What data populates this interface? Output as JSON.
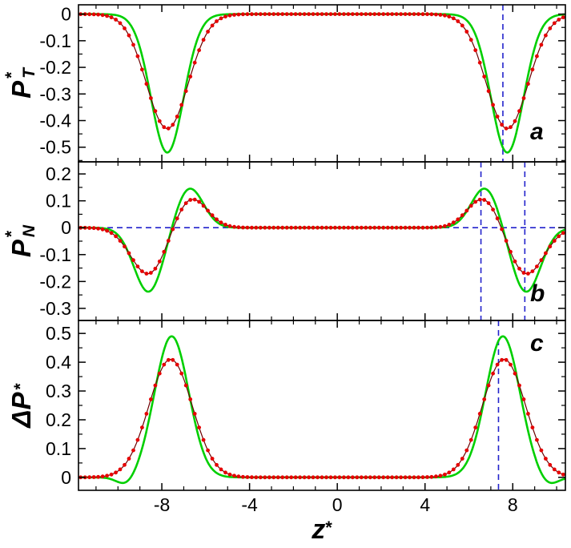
{
  "figure": {
    "background": "#ffffff",
    "frame_color": "#000000",
    "colors": {
      "green_line": "#00cf00",
      "red_points": "#e60000",
      "red_line": "#6b0000",
      "blue_guide": "#2222cc"
    },
    "xlabel": {
      "base": "z",
      "sup": "*"
    }
  },
  "chart_data": {
    "type": "line",
    "title": "",
    "x_axis": {
      "label": "z*",
      "range": [
        -11.8,
        10.4
      ],
      "major_ticks": [
        -8,
        -4,
        0,
        4,
        8
      ],
      "minor_step": 1
    },
    "panels": [
      {
        "id": "a",
        "letter": "a",
        "ylabel": {
          "base": "P",
          "sub": "T",
          "sup": "*",
          "plain": "P_T*"
        },
        "y_axis": {
          "range": [
            -0.555,
            0.035
          ],
          "major_ticks": [
            0,
            -0.1,
            -0.2,
            -0.3,
            -0.4,
            -0.5
          ],
          "minor_step": 0.05
        },
        "guides": {
          "vlines": [
            7.55
          ],
          "hlines": []
        },
        "series": [
          {
            "name": "green-smooth-curve",
            "style": "line",
            "color_key": "green_line",
            "model": {
              "baseline": 0,
              "gaussians": [
                {
                  "center": -7.75,
                  "width": 1.05,
                  "amplitude": -0.52
                },
                {
                  "center": 7.75,
                  "width": 1.05,
                  "amplitude": -0.52
                }
              ]
            },
            "extrema": [
              {
                "z": -7.75,
                "y": -0.52
              },
              {
                "z": 7.75,
                "y": -0.52
              }
            ]
          },
          {
            "name": "red-point-curve",
            "style": "points",
            "color_key": "red_points",
            "model": {
              "baseline": 0,
              "gaussians": [
                {
                  "center": -7.75,
                  "width": 1.35,
                  "amplitude": -0.43
                },
                {
                  "center": 7.75,
                  "width": 1.35,
                  "amplitude": -0.43
                }
              ]
            },
            "extrema": [
              {
                "z": -7.75,
                "y": -0.43
              },
              {
                "z": 7.75,
                "y": -0.43
              }
            ]
          }
        ]
      },
      {
        "id": "b",
        "letter": "b",
        "ylabel": {
          "base": "P",
          "sub": "N",
          "sup": "*",
          "plain": "P_N*"
        },
        "y_axis": {
          "range": [
            -0.345,
            0.245
          ],
          "major_ticks": [
            0.2,
            0.1,
            0,
            -0.1,
            -0.2,
            -0.3
          ],
          "minor_step": 0.05
        },
        "guides": {
          "vlines": [
            6.55,
            8.55
          ],
          "hlines": [
            0
          ]
        },
        "series": [
          {
            "name": "green-smooth-curve",
            "style": "line",
            "color_key": "green_line",
            "model": {
              "baseline": 0,
              "gaussians": [
                {
                  "center": -8.6,
                  "width": 0.95,
                  "amplitude": -0.24
                },
                {
                  "center": -6.75,
                  "width": 0.9,
                  "amplitude": 0.15
                },
                {
                  "center": 6.75,
                  "width": 0.9,
                  "amplitude": 0.15
                },
                {
                  "center": 8.6,
                  "width": 0.95,
                  "amplitude": -0.24
                }
              ]
            },
            "extrema": [
              {
                "z": -8.6,
                "y": -0.24
              },
              {
                "z": -6.75,
                "y": 0.15
              },
              {
                "z": 6.75,
                "y": 0.15
              },
              {
                "z": 8.6,
                "y": -0.24
              }
            ]
          },
          {
            "name": "red-point-curve",
            "style": "points",
            "color_key": "red_points",
            "model": {
              "baseline": 0,
              "gaussians": [
                {
                  "center": -8.6,
                  "width": 1.15,
                  "amplitude": -0.175
                },
                {
                  "center": -6.7,
                  "width": 1.05,
                  "amplitude": 0.115
                },
                {
                  "center": 6.7,
                  "width": 1.05,
                  "amplitude": 0.115
                },
                {
                  "center": 8.6,
                  "width": 1.15,
                  "amplitude": -0.175
                }
              ]
            },
            "extrema": [
              {
                "z": -8.6,
                "y": -0.175
              },
              {
                "z": -6.7,
                "y": 0.115
              },
              {
                "z": 6.7,
                "y": 0.115
              },
              {
                "z": 8.6,
                "y": -0.175
              }
            ]
          }
        ]
      },
      {
        "id": "c",
        "letter": "c",
        "ylabel": {
          "base": "ΔP",
          "sub": "",
          "sup": "*",
          "plain": "ΔP*"
        },
        "y_axis": {
          "range": [
            -0.045,
            0.545
          ],
          "major_ticks": [
            0.5,
            0.4,
            0.3,
            0.2,
            0.1,
            0
          ],
          "minor_step": 0.05
        },
        "guides": {
          "vlines": [
            7.35
          ],
          "hlines": []
        },
        "series": [
          {
            "name": "green-smooth-curve",
            "style": "line",
            "color_key": "green_line",
            "model": {
              "baseline": 0,
              "gaussians": [
                {
                  "center": -9.6,
                  "width": 0.6,
                  "amplitude": -0.03
                },
                {
                  "center": -7.55,
                  "width": 1.1,
                  "amplitude": 0.49
                },
                {
                  "center": 7.55,
                  "width": 1.1,
                  "amplitude": 0.49
                },
                {
                  "center": 9.6,
                  "width": 0.6,
                  "amplitude": -0.03
                }
              ]
            },
            "extrema": [
              {
                "z": -7.55,
                "y": 0.49
              },
              {
                "z": 7.55,
                "y": 0.49
              }
            ]
          },
          {
            "name": "red-point-curve",
            "style": "points",
            "color_key": "red_points",
            "model": {
              "baseline": 0,
              "gaussians": [
                {
                  "center": -7.6,
                  "width": 1.4,
                  "amplitude": 0.41
                },
                {
                  "center": 7.6,
                  "width": 1.4,
                  "amplitude": 0.41
                }
              ]
            },
            "extrema": [
              {
                "z": -7.6,
                "y": 0.41
              },
              {
                "z": 7.6,
                "y": 0.41
              }
            ]
          }
        ]
      }
    ]
  }
}
